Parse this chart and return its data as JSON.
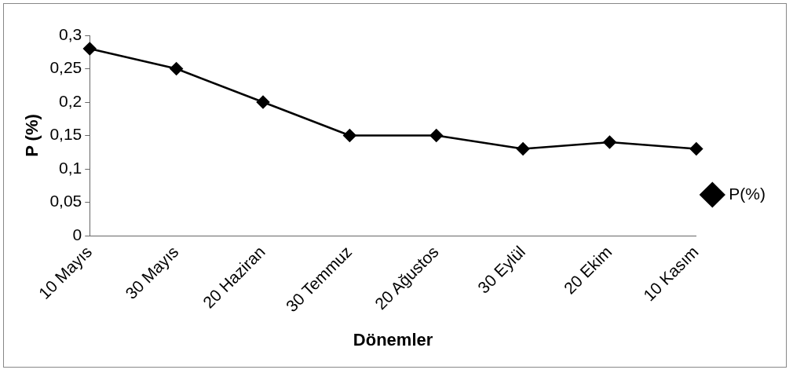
{
  "chart_data": {
    "type": "line",
    "xlabel": "Dönemler",
    "ylabel": "P (%)",
    "categories": [
      "10 Mayıs",
      "30 Mayıs",
      "20 Haziran",
      "30 Temmuz",
      "20 Ağustos",
      "30 Eylül",
      "20 Ekim",
      "10 Kasım"
    ],
    "series": [
      {
        "name": "P(%)",
        "color": "#000000",
        "values": [
          0.28,
          0.25,
          0.2,
          0.15,
          0.15,
          0.13,
          0.14,
          0.13
        ]
      }
    ],
    "ylim": [
      0,
      0.3
    ],
    "yticks": [
      0,
      {
        "value": 0.05,
        "label": "0,05"
      },
      {
        "value": 0.1,
        "label": "0,1"
      },
      {
        "value": 0.15,
        "label": "0,15"
      },
      {
        "value": 0.2,
        "label": "0,2"
      },
      {
        "value": 0.25,
        "label": "0,25"
      },
      {
        "value": 0.3,
        "label": "0,3"
      }
    ],
    "grid": false,
    "legend": "right",
    "marker": "diamond",
    "line_style": "solid"
  }
}
